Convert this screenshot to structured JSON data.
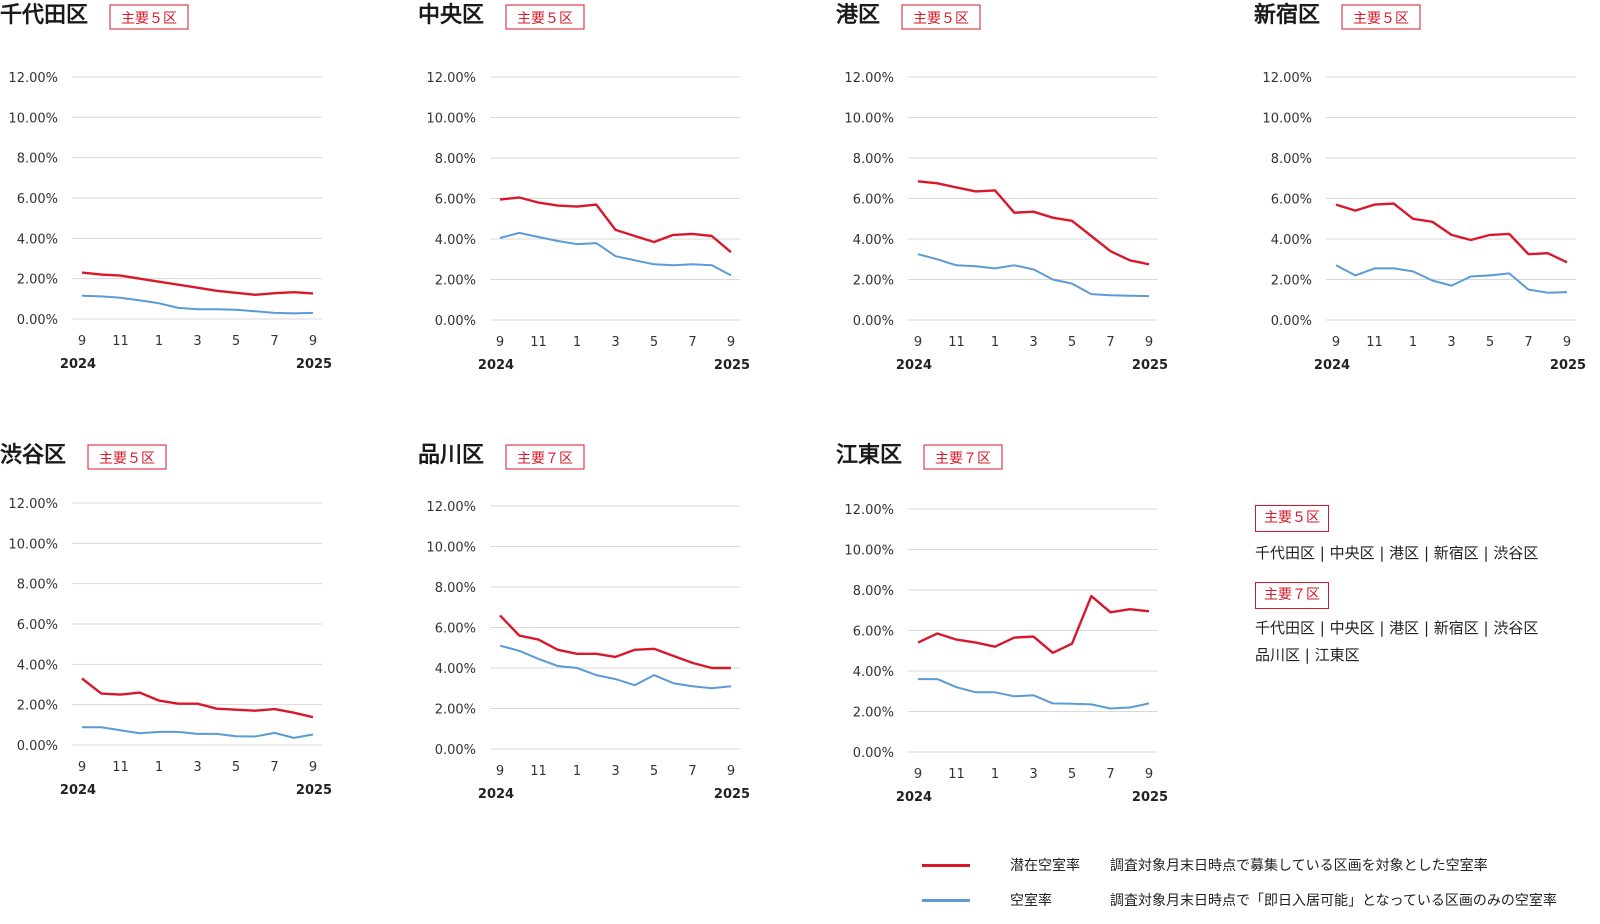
{
  "colors": {
    "potential": "#d7192b",
    "vacancy": "#5b9bd5",
    "grid": "#d9d9d9"
  },
  "x_ticks": [
    "9",
    "11",
    "1",
    "3",
    "5",
    "7",
    "9"
  ],
  "x_years": [
    "2024",
    "2025"
  ],
  "chart_data": [
    {
      "type": "line",
      "title": "千代田区",
      "badge": "主要５区",
      "x": [
        "2024-09",
        "2024-10",
        "2024-11",
        "2024-12",
        "2025-01",
        "2025-02",
        "2025-03",
        "2025-04",
        "2025-05",
        "2025-06",
        "2025-07",
        "2025-08",
        "2025-09"
      ],
      "y_ticks": [
        "12.00%",
        "10.00%",
        "8.00%",
        "6.00%",
        "4.00%",
        "2.00%",
        "0.00%"
      ],
      "ylim": [
        0,
        12
      ],
      "series": [
        {
          "name": "潜在空室率",
          "values": [
            2.3,
            2.2,
            2.15,
            2.0,
            1.85,
            1.7,
            1.55,
            1.4,
            1.3,
            1.2,
            1.28,
            1.33,
            1.27
          ]
        },
        {
          "name": "空室率",
          "values": [
            1.15,
            1.12,
            1.05,
            0.92,
            0.78,
            0.55,
            0.48,
            0.48,
            0.46,
            0.38,
            0.3,
            0.28,
            0.3
          ]
        }
      ]
    },
    {
      "type": "line",
      "title": "中央区",
      "badge": "主要５区",
      "x": [
        "2024-09",
        "2024-10",
        "2024-11",
        "2024-12",
        "2025-01",
        "2025-02",
        "2025-03",
        "2025-04",
        "2025-05",
        "2025-06",
        "2025-07",
        "2025-08",
        "2025-09"
      ],
      "y_ticks": [
        "12.00%",
        "10.00%",
        "8.00%",
        "6.00%",
        "4.00%",
        "2.00%",
        "0.00%"
      ],
      "ylim": [
        0,
        12
      ],
      "series": [
        {
          "name": "潜在空室率",
          "values": [
            5.95,
            6.05,
            5.8,
            5.65,
            5.6,
            5.7,
            4.45,
            4.15,
            3.85,
            4.2,
            4.25,
            4.15,
            3.35
          ]
        },
        {
          "name": "空室率",
          "values": [
            4.05,
            4.3,
            4.1,
            3.9,
            3.75,
            3.8,
            3.15,
            2.95,
            2.75,
            2.7,
            2.75,
            2.7,
            2.2
          ]
        }
      ]
    },
    {
      "type": "line",
      "title": "港区",
      "badge": "主要５区",
      "x": [
        "2024-09",
        "2024-10",
        "2024-11",
        "2024-12",
        "2025-01",
        "2025-02",
        "2025-03",
        "2025-04",
        "2025-05",
        "2025-06",
        "2025-07",
        "2025-08",
        "2025-09"
      ],
      "y_ticks": [
        "12.00%",
        "10.00%",
        "8.00%",
        "6.00%",
        "4.00%",
        "2.00%",
        "0.00%"
      ],
      "ylim": [
        0,
        12
      ],
      "series": [
        {
          "name": "潜在空室率",
          "values": [
            6.85,
            6.75,
            6.55,
            6.35,
            6.4,
            5.3,
            5.35,
            5.05,
            4.9,
            4.15,
            3.4,
            2.95,
            2.75
          ]
        },
        {
          "name": "空室率",
          "values": [
            3.25,
            3.0,
            2.7,
            2.65,
            2.55,
            2.7,
            2.5,
            2.0,
            1.8,
            1.28,
            1.22,
            1.2,
            1.18
          ]
        }
      ]
    },
    {
      "type": "line",
      "title": "新宿区",
      "badge": "主要５区",
      "x": [
        "2024-09",
        "2024-10",
        "2024-11",
        "2024-12",
        "2025-01",
        "2025-02",
        "2025-03",
        "2025-04",
        "2025-05",
        "2025-06",
        "2025-07",
        "2025-08",
        "2025-09"
      ],
      "y_ticks": [
        "12.00%",
        "10.00%",
        "8.00%",
        "6.00%",
        "4.00%",
        "2.00%",
        "0.00%"
      ],
      "ylim": [
        0,
        12
      ],
      "series": [
        {
          "name": "潜在空室率",
          "values": [
            5.7,
            5.4,
            5.7,
            5.75,
            5.0,
            4.85,
            4.2,
            3.95,
            4.2,
            4.25,
            3.25,
            3.3,
            2.85
          ]
        },
        {
          "name": "空室率",
          "values": [
            2.7,
            2.2,
            2.55,
            2.55,
            2.4,
            1.95,
            1.7,
            2.15,
            2.2,
            2.3,
            1.5,
            1.35,
            1.38
          ]
        }
      ]
    },
    {
      "type": "line",
      "title": "渋谷区",
      "badge": "主要５区",
      "x": [
        "2024-09",
        "2024-10",
        "2024-11",
        "2024-12",
        "2025-01",
        "2025-02",
        "2025-03",
        "2025-04",
        "2025-05",
        "2025-06",
        "2025-07",
        "2025-08",
        "2025-09"
      ],
      "y_ticks": [
        "12.00%",
        "10.00%",
        "8.00%",
        "6.00%",
        "4.00%",
        "2.00%",
        "0.00%"
      ],
      "ylim": [
        0,
        12
      ],
      "series": [
        {
          "name": "潜在空室率",
          "values": [
            3.3,
            2.55,
            2.5,
            2.6,
            2.2,
            2.05,
            2.05,
            1.8,
            1.75,
            1.7,
            1.78,
            1.6,
            1.38
          ]
        },
        {
          "name": "空室率",
          "values": [
            0.88,
            0.88,
            0.73,
            0.58,
            0.65,
            0.65,
            0.55,
            0.55,
            0.43,
            0.42,
            0.6,
            0.35,
            0.52
          ]
        }
      ]
    },
    {
      "type": "line",
      "title": "品川区",
      "badge": "主要７区",
      "x": [
        "2024-09",
        "2024-10",
        "2024-11",
        "2024-12",
        "2025-01",
        "2025-02",
        "2025-03",
        "2025-04",
        "2025-05",
        "2025-06",
        "2025-07",
        "2025-08",
        "2025-09"
      ],
      "y_ticks": [
        "12.00%",
        "10.00%",
        "8.00%",
        "6.00%",
        "4.00%",
        "2.00%",
        "0.00%"
      ],
      "ylim": [
        0,
        12
      ],
      "series": [
        {
          "name": "潜在空室率",
          "values": [
            6.6,
            5.6,
            5.4,
            4.9,
            4.7,
            4.7,
            4.55,
            4.9,
            4.95,
            4.6,
            4.25,
            4.0,
            4.0
          ]
        },
        {
          "name": "空室率",
          "values": [
            5.1,
            4.85,
            4.45,
            4.1,
            4.0,
            3.65,
            3.45,
            3.15,
            3.65,
            3.25,
            3.1,
            3.0,
            3.1
          ]
        }
      ]
    },
    {
      "type": "line",
      "title": "江東区",
      "badge": "主要７区",
      "x": [
        "2024-09",
        "2024-10",
        "2024-11",
        "2024-12",
        "2025-01",
        "2025-02",
        "2025-03",
        "2025-04",
        "2025-05",
        "2025-06",
        "2025-07",
        "2025-08",
        "2025-09"
      ],
      "y_ticks": [
        "12.00%",
        "10.00%",
        "8.00%",
        "6.00%",
        "4.00%",
        "2.00%",
        "0.00%"
      ],
      "ylim": [
        0,
        12
      ],
      "series": [
        {
          "name": "潜在空室率",
          "values": [
            5.4,
            5.85,
            5.55,
            5.4,
            5.2,
            5.65,
            5.7,
            4.9,
            5.35,
            7.7,
            6.9,
            7.05,
            6.95
          ]
        },
        {
          "name": "空室率",
          "values": [
            3.6,
            3.6,
            3.2,
            2.95,
            2.95,
            2.75,
            2.8,
            2.4,
            2.38,
            2.35,
            2.15,
            2.2,
            2.4
          ]
        }
      ]
    }
  ],
  "info": {
    "groups": [
      {
        "badge": "主要５区",
        "lines": [
          "千代田区 | 中央区 | 港区 | 新宿区 | 渋谷区"
        ]
      },
      {
        "badge": "主要７区",
        "lines": [
          "千代田区 | 中央区 | 港区 | 新宿区 | 渋谷区",
          "品川区 | 江東区"
        ]
      }
    ]
  },
  "legend": [
    {
      "name": "潜在空室率",
      "desc": "調査対象月末日時点で募集している区画を対象とした空室率"
    },
    {
      "name": "空室率",
      "desc": "調査対象月末日時点で「即日入居可能」となっている区画のみの空室率"
    }
  ]
}
